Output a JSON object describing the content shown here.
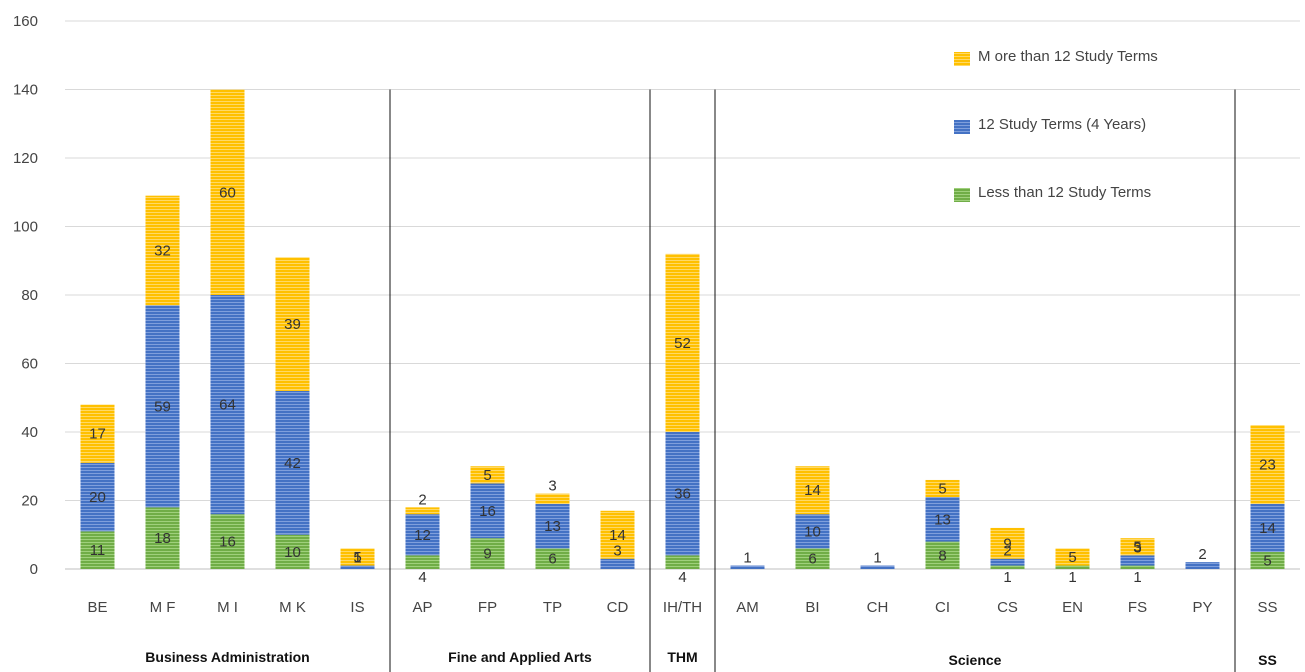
{
  "chart_data": {
    "type": "bar",
    "stacked": true,
    "ylim": [
      0,
      160
    ],
    "yticks": [
      0,
      20,
      40,
      60,
      80,
      100,
      120,
      140,
      160
    ],
    "grid": true,
    "legend_position": "top-right",
    "categories": [
      "BE",
      "M F",
      "M I",
      "M K",
      "IS",
      "AP",
      "FP",
      "TP",
      "CD",
      "IH/TH",
      "AM",
      "BI",
      "CH",
      "CI",
      "CS",
      "EN",
      "FS",
      "PY",
      "SS"
    ],
    "groups": [
      {
        "label": "Business Administration",
        "categories": [
          "BE",
          "M F",
          "M I",
          "M K",
          "IS"
        ]
      },
      {
        "label": "Fine and Applied Arts",
        "categories": [
          "AP",
          "FP",
          "TP",
          "CD"
        ]
      },
      {
        "label": "THM",
        "categories": [
          "IH/TH"
        ]
      },
      {
        "label": "Science",
        "categories": [
          "AM",
          "BI",
          "CH",
          "CI",
          "CS",
          "EN",
          "FS",
          "PY"
        ]
      },
      {
        "label": "SS",
        "categories": [
          "SS"
        ]
      }
    ],
    "series": [
      {
        "name": "Less than 12 Study Terms",
        "color": "#70ad47",
        "values": [
          11,
          18,
          16,
          10,
          0,
          4,
          9,
          6,
          0,
          4,
          0,
          6,
          0,
          8,
          1,
          1,
          1,
          0,
          5
        ]
      },
      {
        "name": "12 Study Terms  (4 Years)",
        "color": "#4472c4",
        "values": [
          20,
          59,
          64,
          42,
          1,
          12,
          16,
          13,
          3,
          36,
          1,
          10,
          1,
          13,
          2,
          0,
          3,
          2,
          14
        ]
      },
      {
        "name": "M ore than 12 Study Terms",
        "color": "#ffc000",
        "values": [
          17,
          32,
          60,
          39,
          5,
          2,
          5,
          3,
          14,
          52,
          0,
          14,
          0,
          5,
          9,
          5,
          5,
          0,
          23
        ]
      }
    ]
  }
}
